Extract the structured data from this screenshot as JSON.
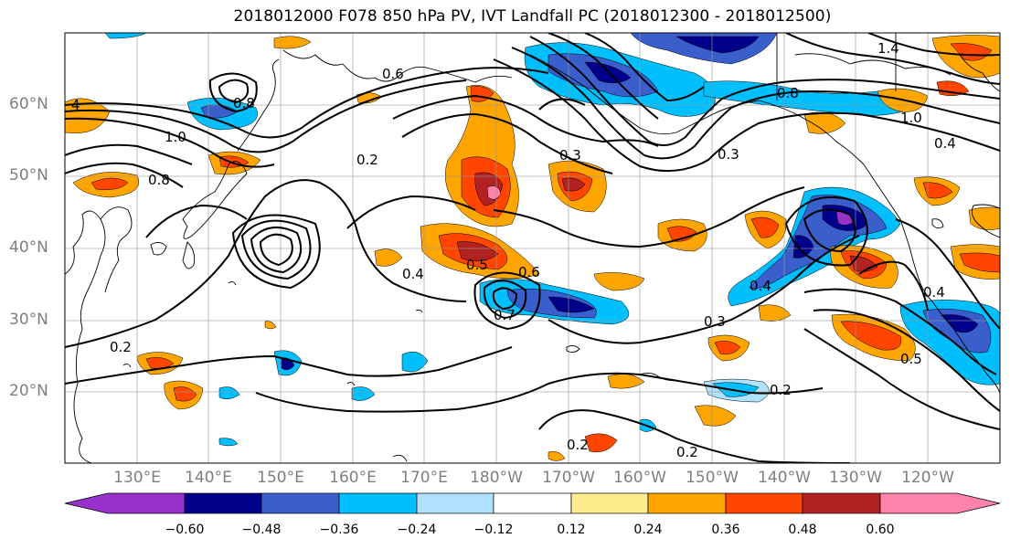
{
  "title": "2018012000 F078 850 hPa PV, IVT Landfall PC (2018012300 - 2018012500)",
  "lat_labels": [
    "60°N",
    "50°N",
    "40°N",
    "30°N",
    "20°N"
  ],
  "lon_labels": [
    "130°E",
    "140°E",
    "150°E",
    "160°E",
    "170°E",
    "180°W",
    "170°W",
    "160°W",
    "150°W",
    "140°W",
    "130°W",
    "120°W"
  ],
  "contour_labels": [
    "4",
    "0.6",
    "0.8",
    "1.4",
    "0.8",
    "1.0",
    "1.0",
    "0.8",
    "0.2",
    "0.3",
    "0.3",
    "0.4",
    "0.5",
    "0.6",
    "0.4",
    "0.7",
    "0.4",
    "0.3",
    "0.5",
    "0.2",
    "0.2",
    "0.2",
    "0.2",
    "0.4"
  ],
  "colorbar": {
    "ticks": [
      "−0.60",
      "−0.48",
      "−0.36",
      "−0.24",
      "−0.12",
      "0.12",
      "0.24",
      "0.36",
      "0.48",
      "0.60"
    ],
    "colors": [
      "#9932cc",
      "#00008b",
      "#3a5fcd",
      "#00bfff",
      "#b0e2ff",
      "#ffffff",
      "#ffec8b",
      "#ffa500",
      "#ff4500",
      "#b22222",
      "#ff82ab"
    ]
  }
}
